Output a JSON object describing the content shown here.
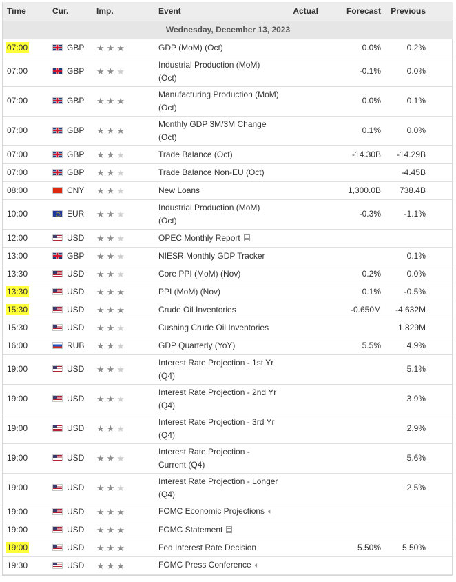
{
  "columns": {
    "time": "Time",
    "cur": "Cur.",
    "imp": "Imp.",
    "event": "Event",
    "actual": "Actual",
    "forecast": "Forecast",
    "previous": "Previous"
  },
  "day_header": "Wednesday, December 13, 2023",
  "colors": {
    "highlight": "#ffff3a",
    "star_on": "#8c8c8c",
    "star_off": "#cfcfcf"
  },
  "events": [
    {
      "time": "07:00",
      "hl": true,
      "cur": "GBP",
      "flag": "gb",
      "imp": 3,
      "lines": [
        "GDP (MoM) (Oct)"
      ],
      "icon": "",
      "actual": "",
      "forecast": "0.0%",
      "previous": "0.2%"
    },
    {
      "time": "07:00",
      "hl": false,
      "cur": "GBP",
      "flag": "gb",
      "imp": 2,
      "lines": [
        "Industrial Production (MoM)",
        "(Oct)"
      ],
      "icon": "",
      "actual": "",
      "forecast": "-0.1%",
      "previous": "0.0%"
    },
    {
      "time": "07:00",
      "hl": false,
      "cur": "GBP",
      "flag": "gb",
      "imp": 3,
      "lines": [
        "Manufacturing Production (MoM)",
        "(Oct)"
      ],
      "icon": "",
      "actual": "",
      "forecast": "0.0%",
      "previous": "0.1%"
    },
    {
      "time": "07:00",
      "hl": false,
      "cur": "GBP",
      "flag": "gb",
      "imp": 3,
      "lines": [
        "Monthly GDP 3M/3M Change",
        "(Oct)"
      ],
      "icon": "",
      "actual": "",
      "forecast": "0.1%",
      "previous": "0.0%"
    },
    {
      "time": "07:00",
      "hl": false,
      "cur": "GBP",
      "flag": "gb",
      "imp": 2,
      "lines": [
        "Trade Balance (Oct)"
      ],
      "icon": "",
      "actual": "",
      "forecast": "-14.30B",
      "previous": "-14.29B"
    },
    {
      "time": "07:00",
      "hl": false,
      "cur": "GBP",
      "flag": "gb",
      "imp": 2,
      "lines": [
        "Trade Balance Non-EU (Oct)"
      ],
      "icon": "",
      "actual": "",
      "forecast": "",
      "previous": "-4.45B"
    },
    {
      "time": "08:00",
      "hl": false,
      "cur": "CNY",
      "flag": "cn",
      "imp": 2,
      "lines": [
        "New Loans"
      ],
      "icon": "",
      "actual": "",
      "forecast": "1,300.0B",
      "previous": "738.4B"
    },
    {
      "time": "10:00",
      "hl": false,
      "cur": "EUR",
      "flag": "eu",
      "imp": 2,
      "lines": [
        "Industrial Production (MoM)",
        "(Oct)"
      ],
      "icon": "",
      "actual": "",
      "forecast": "-0.3%",
      "previous": "-1.1%"
    },
    {
      "time": "12:00",
      "hl": false,
      "cur": "USD",
      "flag": "us",
      "imp": 2,
      "lines": [
        "OPEC Monthly Report"
      ],
      "icon": "doc",
      "actual": "",
      "forecast": "",
      "previous": ""
    },
    {
      "time": "13:00",
      "hl": false,
      "cur": "GBP",
      "flag": "gb",
      "imp": 2,
      "lines": [
        "NIESR Monthly GDP Tracker"
      ],
      "icon": "",
      "actual": "",
      "forecast": "",
      "previous": "0.1%"
    },
    {
      "time": "13:30",
      "hl": false,
      "cur": "USD",
      "flag": "us",
      "imp": 2,
      "lines": [
        "Core PPI (MoM) (Nov)"
      ],
      "icon": "",
      "actual": "",
      "forecast": "0.2%",
      "previous": "0.0%"
    },
    {
      "time": "13:30",
      "hl": true,
      "cur": "USD",
      "flag": "us",
      "imp": 3,
      "lines": [
        "PPI (MoM) (Nov)"
      ],
      "icon": "",
      "actual": "",
      "forecast": "0.1%",
      "previous": "-0.5%"
    },
    {
      "time": "15:30",
      "hl": true,
      "cur": "USD",
      "flag": "us",
      "imp": 3,
      "lines": [
        "Crude Oil Inventories"
      ],
      "icon": "",
      "actual": "",
      "forecast": "-0.650M",
      "previous": "-4.632M"
    },
    {
      "time": "15:30",
      "hl": false,
      "cur": "USD",
      "flag": "us",
      "imp": 2,
      "lines": [
        "Cushing Crude Oil Inventories"
      ],
      "icon": "",
      "actual": "",
      "forecast": "",
      "previous": "1.829M"
    },
    {
      "time": "16:00",
      "hl": false,
      "cur": "RUB",
      "flag": "ru",
      "imp": 2,
      "lines": [
        "GDP Quarterly (YoY)"
      ],
      "icon": "",
      "actual": "",
      "forecast": "5.5%",
      "previous": "4.9%"
    },
    {
      "time": "19:00",
      "hl": false,
      "cur": "USD",
      "flag": "us",
      "imp": 2,
      "lines": [
        "Interest Rate Projection - 1st Yr",
        "(Q4)"
      ],
      "icon": "",
      "actual": "",
      "forecast": "",
      "previous": "5.1%"
    },
    {
      "time": "19:00",
      "hl": false,
      "cur": "USD",
      "flag": "us",
      "imp": 2,
      "lines": [
        "Interest Rate Projection - 2nd Yr",
        "(Q4)"
      ],
      "icon": "",
      "actual": "",
      "forecast": "",
      "previous": "3.9%"
    },
    {
      "time": "19:00",
      "hl": false,
      "cur": "USD",
      "flag": "us",
      "imp": 2,
      "lines": [
        "Interest Rate Projection - 3rd Yr",
        "(Q4)"
      ],
      "icon": "",
      "actual": "",
      "forecast": "",
      "previous": "2.9%"
    },
    {
      "time": "19:00",
      "hl": false,
      "cur": "USD",
      "flag": "us",
      "imp": 2,
      "lines": [
        "Interest Rate Projection -",
        "Current (Q4)"
      ],
      "icon": "",
      "actual": "",
      "forecast": "",
      "previous": "5.6%"
    },
    {
      "time": "19:00",
      "hl": false,
      "cur": "USD",
      "flag": "us",
      "imp": 2,
      "lines": [
        "Interest Rate Projection - Longer",
        "(Q4)"
      ],
      "icon": "",
      "actual": "",
      "forecast": "",
      "previous": "2.5%"
    },
    {
      "time": "19:00",
      "hl": false,
      "cur": "USD",
      "flag": "us",
      "imp": 3,
      "lines": [
        "FOMC Economic Projections"
      ],
      "icon": "speaker",
      "actual": "",
      "forecast": "",
      "previous": ""
    },
    {
      "time": "19:00",
      "hl": false,
      "cur": "USD",
      "flag": "us",
      "imp": 3,
      "lines": [
        "FOMC Statement"
      ],
      "icon": "doc",
      "actual": "",
      "forecast": "",
      "previous": ""
    },
    {
      "time": "19:00",
      "hl": true,
      "cur": "USD",
      "flag": "us",
      "imp": 3,
      "lines": [
        "Fed Interest Rate Decision"
      ],
      "icon": "",
      "actual": "",
      "forecast": "5.50%",
      "previous": "5.50%"
    },
    {
      "time": "19:30",
      "hl": false,
      "cur": "USD",
      "flag": "us",
      "imp": 3,
      "lines": [
        "FOMC Press Conference"
      ],
      "icon": "speaker",
      "actual": "",
      "forecast": "",
      "previous": ""
    }
  ]
}
